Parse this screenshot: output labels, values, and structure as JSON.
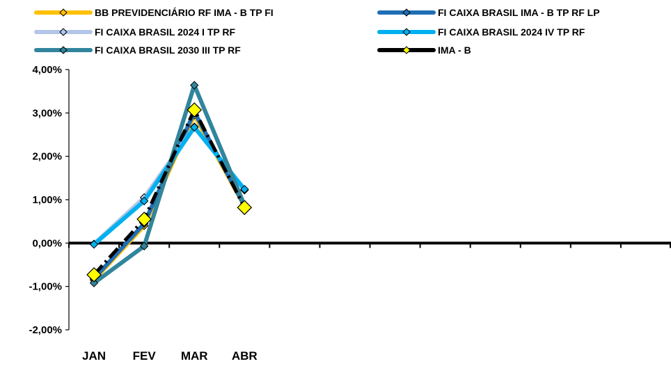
{
  "chart_data": {
    "type": "line",
    "categories": [
      "JAN",
      "FEV",
      "MAR",
      "ABR"
    ],
    "y_ticks": [
      "4,00%",
      "3,00%",
      "2,00%",
      "1,00%",
      "0,00%",
      "-1,00%",
      "-2,00%"
    ],
    "ylim": [
      -2,
      4
    ],
    "ytick_values": [
      4,
      3,
      2,
      1,
      0,
      -1,
      -2
    ],
    "x_slots": 12,
    "grid": false,
    "legend": "top",
    "series": [
      {
        "name": "BB PREVIDENCIÁRIO RF IMA - B TP FI",
        "color": "#FFC000",
        "values": [
          -0.85,
          0.4,
          2.95,
          0.85
        ]
      },
      {
        "name": "FI CAIXA BRASIL IMA - B TP RF LP",
        "color": "#1F6FB5",
        "values": [
          -0.82,
          0.45,
          3.02,
          0.86
        ]
      },
      {
        "name": "FI CAIXA BRASIL 2024 I TP RF",
        "color": "#B4C6E7",
        "values": [
          -0.02,
          1.05,
          2.68,
          1.22
        ]
      },
      {
        "name": "FI CAIXA BRASIL 2024 IV TP RF",
        "color": "#00B0F0",
        "values": [
          -0.03,
          0.97,
          2.67,
          1.24
        ]
      },
      {
        "name": "FI CAIXA BRASIL 2030 III TP RF",
        "color": "#31859C",
        "values": [
          -0.92,
          -0.07,
          3.64,
          0.87
        ]
      },
      {
        "name": "IMA - B",
        "color": "#000000",
        "values": [
          -0.73,
          0.55,
          3.07,
          0.82
        ]
      }
    ]
  }
}
